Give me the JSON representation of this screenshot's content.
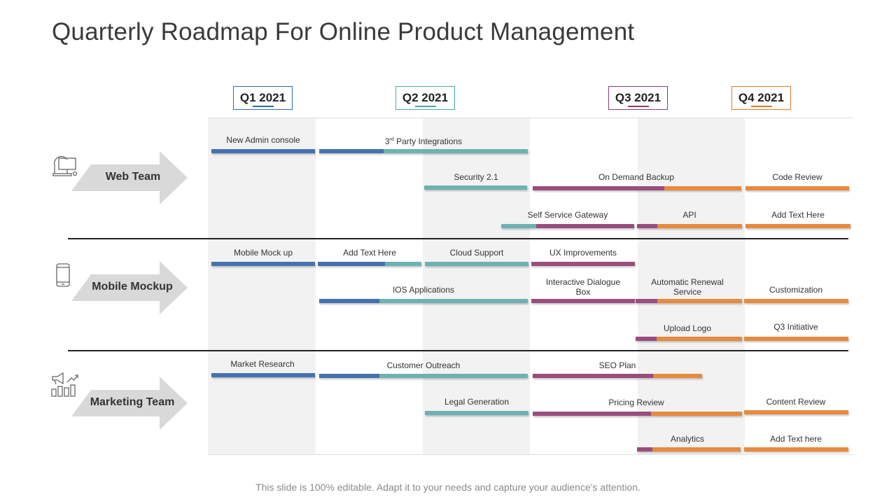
{
  "title": "Quarterly Roadmap For Online Product Management",
  "footer": "This slide is 100% editable. Adapt it to your needs and capture your audience's attention.",
  "colors": {
    "blue": "#4472b0",
    "teal": "#6db2b3",
    "purple": "#9a4d7c",
    "orange": "#e88a3c"
  },
  "quarters": [
    {
      "label": "Q1 2021",
      "color": "#2e6aa0"
    },
    {
      "label": "Q2 2021",
      "color": "#4da6a6"
    },
    {
      "label": "Q3 2021",
      "color": "#8b3d70"
    },
    {
      "label": "Q4 2021",
      "color": "#e07b2e"
    }
  ],
  "teams": [
    {
      "label": "Web Team",
      "icon": "computer-network-icon"
    },
    {
      "label": "Mobile Mockup",
      "icon": "mobile-phone-icon"
    },
    {
      "label": "Marketing Team",
      "icon": "megaphone-chart-icon"
    }
  ],
  "tasks": {
    "t1": "New Admin console",
    "t2a": "3",
    "t2b": "rd",
    "t2c": " Party Integrations",
    "t3": "Security 2.1",
    "t4": "On Demand Backup",
    "t5": "Code Review",
    "t6": "Self Service Gateway",
    "t7": "API",
    "t8": "Add Text Here",
    "t9": "Mobile Mock up",
    "t10": "Add Text Here",
    "t11": "Cloud Support",
    "t12": "UX Improvements",
    "t13": "IOS Applications",
    "t14a": "Interactive Dialogue",
    "t14b": "Box",
    "t15a": "Automatic Renewal",
    "t15b": "Service",
    "t16": "Customization",
    "t17": "Upload Logo",
    "t18": "Q3 Initiative",
    "t19": "Market Research",
    "t20": "Customer Outreach",
    "t21": "SEO Plan",
    "t22": "Legal Generation",
    "t23": "Pricing Review",
    "t24": "Content Review",
    "t25": "Analytics",
    "t26": "Add Text here"
  }
}
